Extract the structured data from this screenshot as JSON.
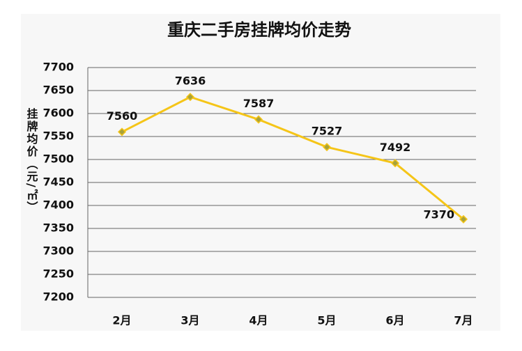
{
  "chart_data": {
    "type": "line",
    "title": "重庆二手房挂牌均价走势",
    "y_label": "挂牌均价（元/㎡）",
    "categories": [
      "2月",
      "3月",
      "4月",
      "5月",
      "6月",
      "7月"
    ],
    "series": [
      {
        "name": "挂牌均价",
        "color": "#f5c518",
        "values": [
          7560,
          7636,
          7587,
          7527,
          7492,
          7370
        ]
      }
    ],
    "ylim": [
      7200,
      7700
    ],
    "yticks": [
      7200,
      7250,
      7300,
      7350,
      7400,
      7450,
      7500,
      7550,
      7600,
      7650,
      7700
    ],
    "grid": true
  }
}
